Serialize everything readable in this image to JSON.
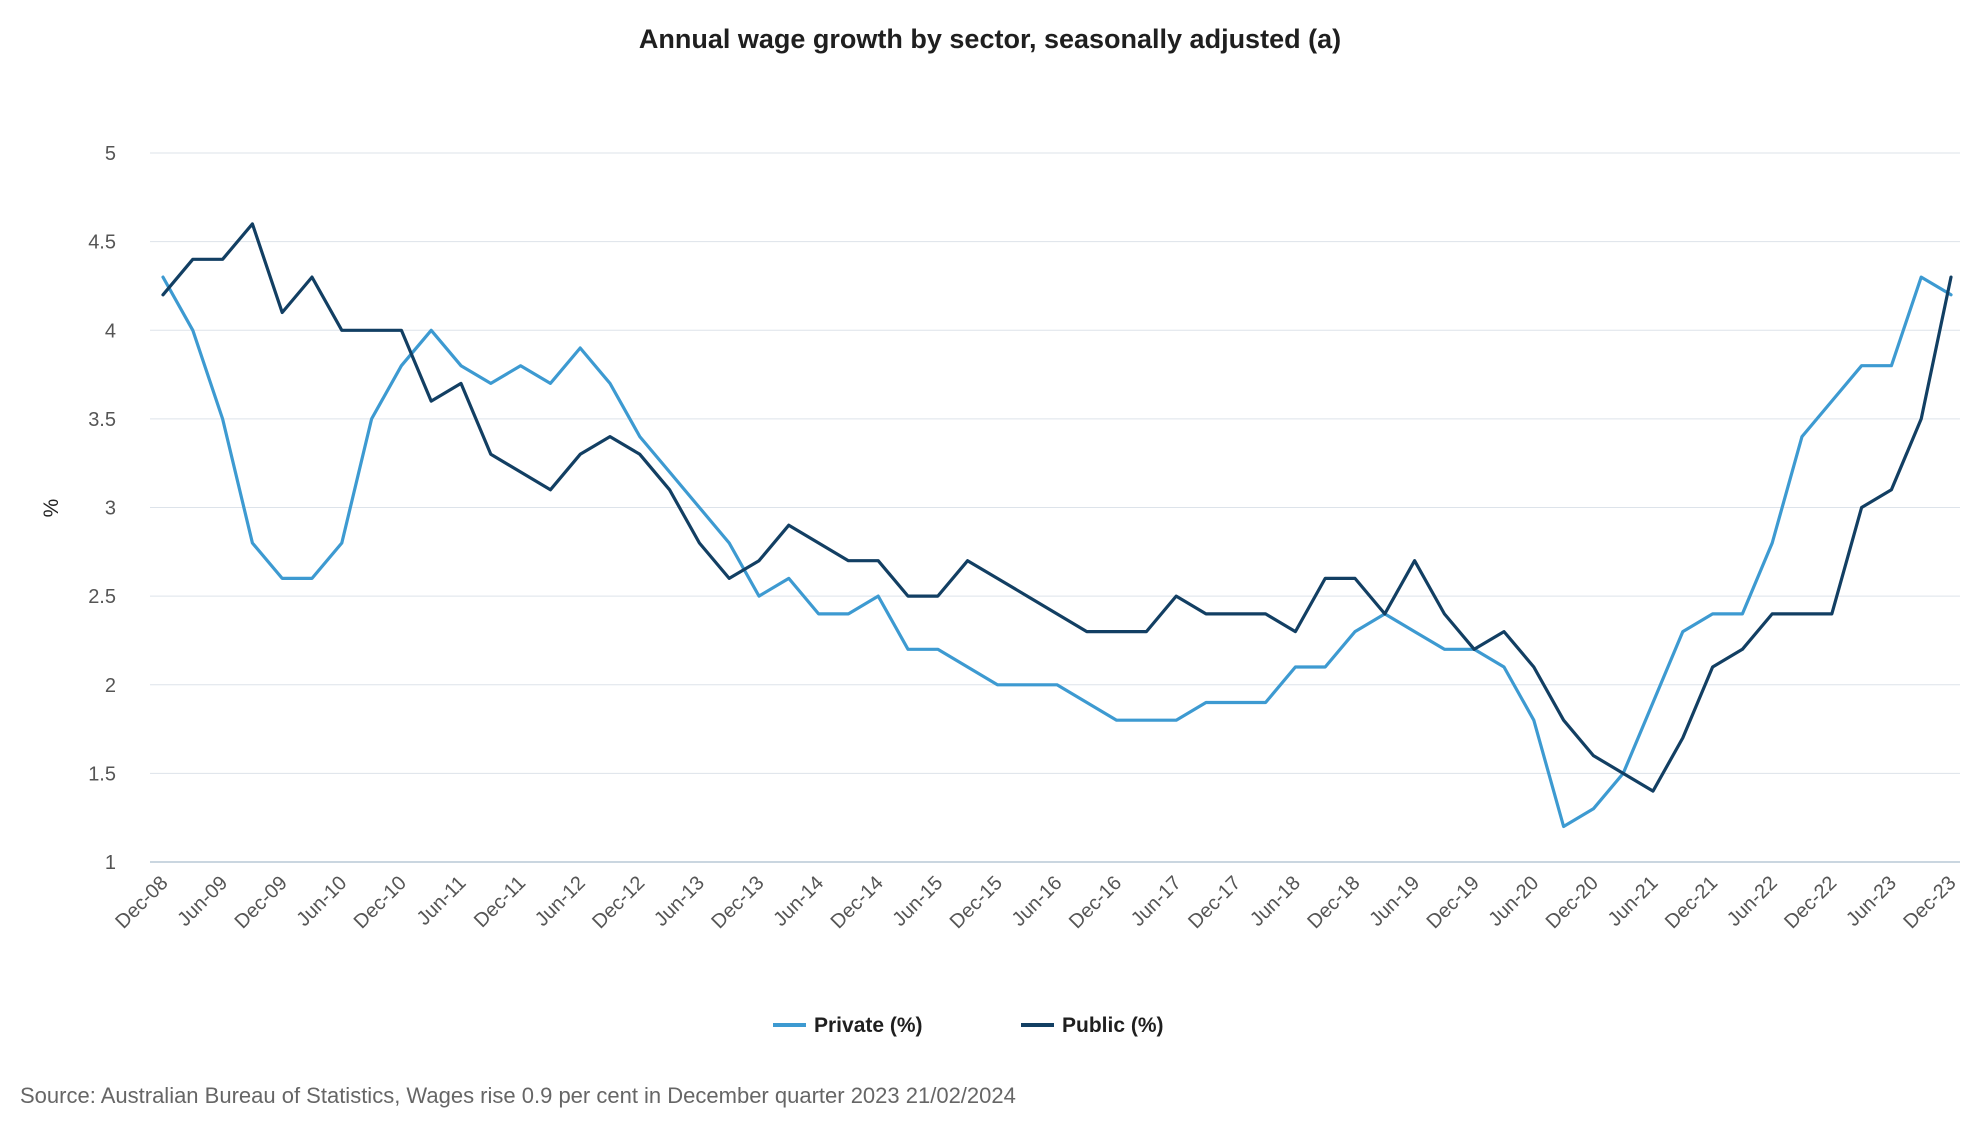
{
  "chart_data": {
    "type": "line",
    "title": "Annual wage growth by sector, seasonally adjusted (a)",
    "xlabel": "",
    "ylabel": "%",
    "ylim": [
      1,
      5
    ],
    "yticks": [
      "1",
      "1.5",
      "2",
      "2.5",
      "3",
      "3.5",
      "4",
      "4.5",
      "5"
    ],
    "grid": true,
    "legend_position": "bottom-center",
    "x": [
      "Dec-08",
      "Mar-09",
      "Jun-09",
      "Sep-09",
      "Dec-09",
      "Mar-10",
      "Jun-10",
      "Sep-10",
      "Dec-10",
      "Mar-11",
      "Jun-11",
      "Sep-11",
      "Dec-11",
      "Mar-12",
      "Jun-12",
      "Sep-12",
      "Dec-12",
      "Mar-13",
      "Jun-13",
      "Sep-13",
      "Dec-13",
      "Mar-14",
      "Jun-14",
      "Sep-14",
      "Dec-14",
      "Mar-15",
      "Jun-15",
      "Sep-15",
      "Dec-15",
      "Mar-16",
      "Jun-16",
      "Sep-16",
      "Dec-16",
      "Mar-17",
      "Jun-17",
      "Sep-17",
      "Dec-17",
      "Mar-18",
      "Jun-18",
      "Sep-18",
      "Dec-18",
      "Mar-19",
      "Jun-19",
      "Sep-19",
      "Dec-19",
      "Mar-20",
      "Jun-20",
      "Sep-20",
      "Dec-20",
      "Mar-21",
      "Jun-21",
      "Sep-21",
      "Dec-21",
      "Mar-22",
      "Jun-22",
      "Sep-22",
      "Dec-22",
      "Mar-23",
      "Jun-23",
      "Sep-23",
      "Dec-23"
    ],
    "xtick_labels": [
      "Dec-08",
      "Jun-09",
      "Dec-09",
      "Jun-10",
      "Dec-10",
      "Jun-11",
      "Dec-11",
      "Jun-12",
      "Dec-12",
      "Jun-13",
      "Dec-13",
      "Jun-14",
      "Dec-14",
      "Jun-15",
      "Dec-15",
      "Jun-16",
      "Dec-16",
      "Jun-17",
      "Dec-17",
      "Jun-18",
      "Dec-18",
      "Jun-19",
      "Dec-19",
      "Jun-20",
      "Dec-20",
      "Jun-21",
      "Dec-21",
      "Jun-22",
      "Dec-22",
      "Jun-23",
      "Dec-23"
    ],
    "series": [
      {
        "name": "Private (%)",
        "color": "#3d9ad1",
        "values": [
          4.3,
          4.0,
          3.5,
          2.8,
          2.6,
          2.6,
          2.8,
          3.5,
          3.8,
          4.0,
          3.8,
          3.7,
          3.8,
          3.7,
          3.9,
          3.7,
          3.4,
          3.2,
          3.0,
          2.8,
          2.5,
          2.6,
          2.4,
          2.4,
          2.5,
          2.2,
          2.2,
          2.1,
          2.0,
          2.0,
          2.0,
          1.9,
          1.8,
          1.8,
          1.8,
          1.9,
          1.9,
          1.9,
          2.1,
          2.1,
          2.3,
          2.4,
          2.3,
          2.2,
          2.2,
          2.1,
          1.8,
          1.2,
          1.3,
          1.5,
          1.9,
          2.3,
          2.4,
          2.4,
          2.8,
          3.4,
          3.6,
          3.8,
          3.8,
          4.3,
          4.2
        ]
      },
      {
        "name": "Public (%)",
        "color": "#123f63",
        "values": [
          4.2,
          4.4,
          4.4,
          4.6,
          4.1,
          4.3,
          4.0,
          4.0,
          4.0,
          3.6,
          3.7,
          3.3,
          3.2,
          3.1,
          3.3,
          3.4,
          3.3,
          3.1,
          2.8,
          2.6,
          2.7,
          2.9,
          2.8,
          2.7,
          2.7,
          2.5,
          2.5,
          2.7,
          2.6,
          2.5,
          2.4,
          2.3,
          2.3,
          2.3,
          2.5,
          2.4,
          2.4,
          2.4,
          2.3,
          2.6,
          2.6,
          2.4,
          2.7,
          2.4,
          2.2,
          2.3,
          2.1,
          1.8,
          1.6,
          1.5,
          1.4,
          1.7,
          2.1,
          2.2,
          2.4,
          2.4,
          2.4,
          3.0,
          3.1,
          3.5,
          4.3
        ]
      }
    ],
    "source": "Source: Australian Bureau of Statistics, Wages rise 0.9 per cent in December quarter 2023 21/02/2024"
  }
}
